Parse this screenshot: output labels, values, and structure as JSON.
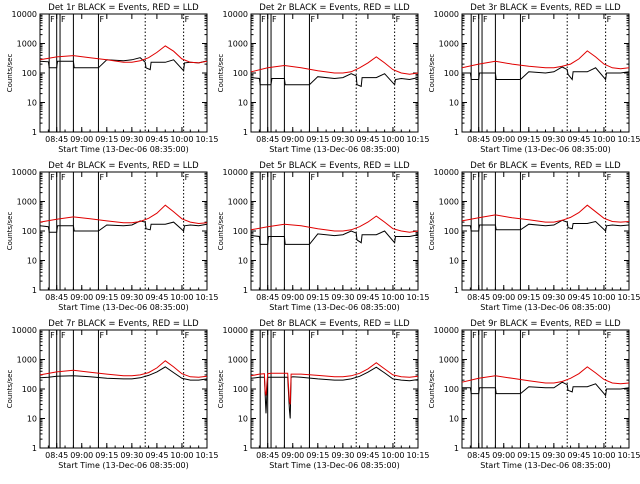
{
  "colors": {
    "events": "#000000",
    "lld": "#e00000",
    "axes": "#000000",
    "background": "#ffffff"
  },
  "common": {
    "xlabel": "Start Time (13-Dec-06 08:35:00)",
    "ylabel": "Counts/sec",
    "xticks": [
      "08:45",
      "09:00",
      "09:15",
      "09:30",
      "09:45",
      "10:00",
      "10:15"
    ],
    "yticks": [
      "1",
      "10",
      "100",
      "1000",
      "10000"
    ],
    "xlim_minutes": [
      0,
      100
    ],
    "ylim": [
      1,
      10000
    ],
    "yscale": "log"
  },
  "chart_data": [
    {
      "type": "line",
      "title": "Det 1r BLACK = Events, RED = LLD",
      "flag_labels": [
        "F",
        "F",
        "F",
        "F"
      ],
      "series": [
        {
          "name": "Events",
          "x": [
            0,
            5,
            5.5,
            10,
            10.5,
            20,
            20.5,
            35,
            40,
            50,
            55,
            60,
            63,
            63.5,
            66,
            66.5,
            75,
            80,
            86,
            86.5,
            90,
            95,
            100
          ],
          "y": [
            250,
            240,
            150,
            150,
            250,
            250,
            150,
            150,
            280,
            260,
            280,
            330,
            230,
            150,
            130,
            230,
            230,
            280,
            120,
            220,
            230,
            220,
            260
          ]
        },
        {
          "name": "LLD",
          "x": [
            0,
            10,
            20,
            30,
            40,
            50,
            55,
            60,
            65,
            70,
            75,
            80,
            85,
            90,
            95,
            100
          ],
          "y": [
            280,
            350,
            390,
            330,
            280,
            230,
            230,
            260,
            330,
            500,
            830,
            550,
            300,
            230,
            220,
            250
          ]
        }
      ]
    },
    {
      "type": "line",
      "title": "Det 2r BLACK = Events, RED = LLD",
      "flag_labels": [
        "F",
        "F",
        "F",
        "F"
      ],
      "series": [
        {
          "name": "Events",
          "x": [
            0,
            5,
            5.5,
            12,
            12.5,
            20,
            20.5,
            35,
            40,
            50,
            55,
            60,
            63,
            63.5,
            66,
            66.5,
            75,
            80,
            86,
            86.5,
            90,
            95,
            100
          ],
          "y": [
            70,
            65,
            40,
            40,
            65,
            65,
            40,
            40,
            75,
            65,
            70,
            95,
            80,
            40,
            35,
            70,
            70,
            95,
            40,
            60,
            65,
            60,
            70
          ]
        },
        {
          "name": "LLD",
          "x": [
            0,
            10,
            20,
            30,
            40,
            50,
            55,
            60,
            65,
            70,
            75,
            80,
            85,
            90,
            95,
            100
          ],
          "y": [
            110,
            150,
            180,
            150,
            120,
            100,
            100,
            110,
            150,
            220,
            350,
            220,
            130,
            100,
            90,
            100
          ]
        }
      ]
    },
    {
      "type": "line",
      "title": "Det 3r BLACK = Events, RED = LLD",
      "flag_labels": [
        "F",
        "F",
        "F",
        "F"
      ],
      "series": [
        {
          "name": "Events",
          "x": [
            0,
            5,
            5.5,
            10,
            10.5,
            20,
            20.5,
            35,
            40,
            50,
            55,
            60,
            63,
            63.5,
            66,
            66.5,
            75,
            80,
            86,
            86.5,
            90,
            95,
            100
          ],
          "y": [
            100,
            100,
            60,
            60,
            100,
            100,
            60,
            60,
            110,
            100,
            110,
            160,
            130,
            90,
            60,
            110,
            110,
            150,
            60,
            100,
            100,
            100,
            110
          ]
        },
        {
          "name": "LLD",
          "x": [
            0,
            10,
            20,
            30,
            40,
            50,
            55,
            60,
            65,
            70,
            75,
            80,
            85,
            90,
            95,
            100
          ],
          "y": [
            150,
            200,
            250,
            200,
            170,
            150,
            150,
            170,
            200,
            300,
            560,
            350,
            200,
            150,
            140,
            150
          ]
        }
      ]
    },
    {
      "type": "line",
      "title": "Det 4r BLACK = Events, RED = LLD",
      "flag_labels": [
        "F",
        "F",
        "F",
        "F"
      ],
      "series": [
        {
          "name": "Events",
          "x": [
            0,
            5,
            5.5,
            10,
            10.5,
            20,
            20.5,
            35,
            40,
            50,
            55,
            60,
            63,
            63.5,
            66,
            66.5,
            75,
            80,
            86,
            86.5,
            90,
            95,
            100
          ],
          "y": [
            150,
            140,
            90,
            90,
            150,
            150,
            100,
            100,
            160,
            150,
            160,
            220,
            200,
            120,
            110,
            170,
            170,
            200,
            100,
            150,
            160,
            150,
            170
          ]
        },
        {
          "name": "LLD",
          "x": [
            0,
            10,
            20,
            30,
            40,
            50,
            55,
            60,
            65,
            70,
            75,
            80,
            85,
            90,
            95,
            100
          ],
          "y": [
            200,
            250,
            300,
            260,
            220,
            190,
            190,
            210,
            270,
            400,
            750,
            450,
            260,
            200,
            180,
            190
          ]
        }
      ]
    },
    {
      "type": "line",
      "title": "Det 5r BLACK = Events, RED = LLD",
      "flag_labels": [
        "F",
        "F",
        "F",
        "F"
      ],
      "series": [
        {
          "name": "Events",
          "x": [
            0,
            5,
            5.5,
            10,
            10.5,
            20,
            20.5,
            35,
            40,
            50,
            55,
            60,
            63,
            63.5,
            66,
            66.5,
            75,
            80,
            86,
            86.5,
            90,
            95,
            100
          ],
          "y": [
            70,
            65,
            35,
            35,
            65,
            65,
            35,
            35,
            80,
            70,
            75,
            100,
            85,
            50,
            40,
            75,
            75,
            100,
            40,
            65,
            65,
            65,
            75
          ]
        },
        {
          "name": "LLD",
          "x": [
            0,
            10,
            20,
            30,
            40,
            50,
            55,
            60,
            65,
            70,
            75,
            80,
            85,
            90,
            95,
            100
          ],
          "y": [
            110,
            140,
            170,
            150,
            120,
            100,
            100,
            110,
            140,
            200,
            320,
            200,
            120,
            100,
            90,
            100
          ]
        }
      ]
    },
    {
      "type": "line",
      "title": "Det 6r BLACK = Events, RED = LLD",
      "flag_labels": [
        "F",
        "F",
        "F",
        "F"
      ],
      "series": [
        {
          "name": "Events",
          "x": [
            0,
            5,
            5.5,
            10,
            10.5,
            20,
            20.5,
            35,
            40,
            50,
            55,
            60,
            63,
            63.5,
            66,
            66.5,
            75,
            80,
            86,
            86.5,
            90,
            95,
            100
          ],
          "y": [
            150,
            150,
            100,
            100,
            160,
            160,
            110,
            110,
            170,
            150,
            160,
            230,
            200,
            130,
            120,
            180,
            180,
            210,
            100,
            150,
            160,
            150,
            160
          ]
        },
        {
          "name": "LLD",
          "x": [
            0,
            10,
            20,
            30,
            40,
            50,
            55,
            60,
            65,
            70,
            75,
            80,
            85,
            90,
            95,
            100
          ],
          "y": [
            220,
            280,
            350,
            280,
            240,
            200,
            200,
            230,
            290,
            420,
            750,
            450,
            270,
            210,
            200,
            210
          ]
        }
      ]
    },
    {
      "type": "line",
      "title": "Det 7r BLACK = Events, RED = LLD",
      "flag_labels": [
        "F",
        "F",
        "F",
        "F"
      ],
      "series": [
        {
          "name": "Events",
          "x": [
            0,
            5,
            10,
            20,
            30,
            40,
            50,
            55,
            60,
            65,
            70,
            75,
            80,
            85,
            90,
            95,
            100
          ],
          "y": [
            240,
            250,
            270,
            280,
            260,
            230,
            220,
            220,
            240,
            290,
            380,
            560,
            360,
            230,
            200,
            200,
            220
          ]
        },
        {
          "name": "LLD",
          "x": [
            0,
            10,
            20,
            30,
            40,
            50,
            55,
            60,
            65,
            70,
            75,
            80,
            85,
            90,
            95,
            100
          ],
          "y": [
            300,
            380,
            430,
            370,
            320,
            280,
            280,
            300,
            360,
            520,
            900,
            560,
            330,
            260,
            250,
            270
          ]
        }
      ]
    },
    {
      "type": "line",
      "title": "Det 8r BLACK = Events, RED = LLD",
      "flag_labels": [
        "F",
        "F",
        "F",
        "F"
      ],
      "series": [
        {
          "name": "Events",
          "x": [
            0,
            5,
            8,
            8.5,
            9,
            10,
            12,
            15,
            20,
            22,
            23,
            23.5,
            24,
            25,
            30,
            40,
            50,
            55,
            60,
            65,
            70,
            75,
            80,
            85,
            90,
            95,
            100
          ],
          "y": [
            230,
            250,
            250,
            60,
            15,
            250,
            250,
            250,
            250,
            250,
            20,
            10,
            250,
            260,
            250,
            220,
            200,
            200,
            220,
            270,
            370,
            550,
            350,
            220,
            200,
            190,
            210
          ]
        },
        {
          "name": "LLD",
          "x": [
            0,
            5,
            8,
            8.5,
            9,
            10,
            12,
            15,
            20,
            22,
            23,
            23.5,
            24,
            25,
            30,
            40,
            50,
            55,
            60,
            65,
            70,
            75,
            80,
            85,
            90,
            95,
            100
          ],
          "y": [
            280,
            320,
            330,
            80,
            60,
            330,
            340,
            340,
            340,
            340,
            40,
            30,
            320,
            320,
            320,
            290,
            260,
            260,
            280,
            340,
            480,
            780,
            480,
            300,
            260,
            250,
            270
          ]
        }
      ]
    },
    {
      "type": "line",
      "title": "Det 9r BLACK = Events, RED = LLD",
      "flag_labels": [
        "F",
        "F",
        "F",
        "F"
      ],
      "series": [
        {
          "name": "Events",
          "x": [
            0,
            5,
            5.5,
            10,
            10.5,
            20,
            20.5,
            35,
            40,
            50,
            55,
            60,
            63,
            63.5,
            66,
            66.5,
            75,
            80,
            86,
            86.5,
            90,
            95,
            100
          ],
          "y": [
            110,
            110,
            70,
            70,
            110,
            110,
            70,
            70,
            120,
            110,
            110,
            170,
            140,
            90,
            80,
            120,
            120,
            150,
            60,
            100,
            100,
            100,
            110
          ]
        },
        {
          "name": "LLD",
          "x": [
            0,
            10,
            20,
            30,
            40,
            50,
            55,
            60,
            65,
            70,
            75,
            80,
            85,
            90,
            95,
            100
          ],
          "y": [
            170,
            230,
            280,
            230,
            190,
            160,
            160,
            180,
            230,
            330,
            560,
            350,
            210,
            160,
            150,
            160
          ]
        }
      ]
    }
  ]
}
